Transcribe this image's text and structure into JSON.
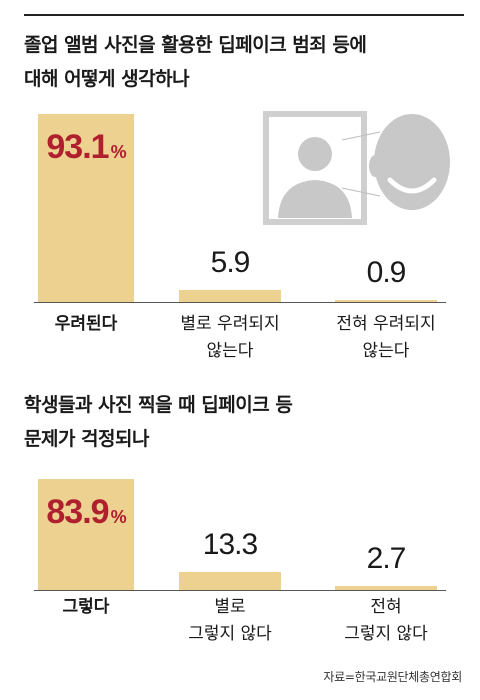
{
  "chart_data": [
    {
      "type": "bar",
      "title": "졸업 앨범 사진을 활용한 딥페이크 범죄 등에 대해 어떻게 생각하나",
      "categories": [
        "우려된다",
        "별로 우려되지 않는다",
        "전혀 우려되지 않는다"
      ],
      "values": [
        93.1,
        5.9,
        0.9
      ],
      "value_labels": [
        "93.1",
        "5.9",
        "0.9"
      ],
      "highlight_unit": "%",
      "highlight_index": 0,
      "ylim": [
        0,
        100
      ]
    },
    {
      "type": "bar",
      "title": "학생들과 사진 찍을 때 딥페이크 등 문제가 걱정되나",
      "categories": [
        "그렇다",
        "별로 그렇지 않다",
        "전혀 그렇지 않다"
      ],
      "values": [
        83.9,
        13.3,
        2.7
      ],
      "value_labels": [
        "83.9",
        "13.3",
        "2.7"
      ],
      "highlight_unit": "%",
      "highlight_index": 0,
      "ylim": [
        0,
        100
      ]
    }
  ],
  "text": {
    "title_1": "졸업 앨범 사진을 활용한 딥페이크 범죄 등에\n대해 어떻게 생각하나",
    "title_2": "학생들과 사진 찍을 때 딥페이크 등\n문제가 걱정되나",
    "cats_1": [
      "우려된다",
      "별로 우려되지\n않는다",
      "전혀 우려되지\n않는다"
    ],
    "cats_2": [
      "그렇다",
      "별로\n그렇지 않다",
      "전혀\n그렇지 않다"
    ],
    "source": "자료=한국교원단체총연합회"
  },
  "colors": {
    "bar": "#ecd190",
    "highlight_value": "#b01f2e",
    "illustration_gray": "#c8c8c8"
  },
  "icons": [
    "portrait-frame-icon",
    "smiling-face-icon"
  ]
}
